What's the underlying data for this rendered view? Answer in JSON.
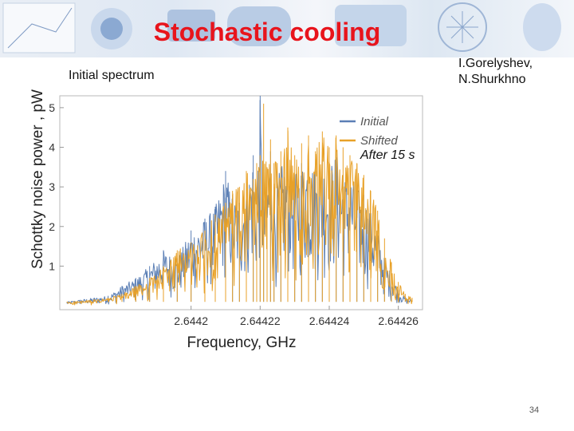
{
  "slide": {
    "title": "Stochastic cooling",
    "authors": [
      "I.Gorelyshev,",
      "N.Shurkhno"
    ],
    "subtitle": "Initial spectrum",
    "annotation": "After 15 s",
    "page_number": "34"
  },
  "colors": {
    "title": "#e8141c",
    "initial": "#5b7fb5",
    "shifted": "#e8a128"
  },
  "chart_data": {
    "type": "line",
    "title": "",
    "xlabel": "Frequency, GHz",
    "ylabel": "Schottky noise power , pW",
    "xlim": [
      2.644162,
      2.644267
    ],
    "ylim": [
      -0.1,
      5.3
    ],
    "xticks": [
      2.6442,
      2.64422,
      2.64424,
      2.64426
    ],
    "xtick_labels": [
      "2.6442",
      "2.64422",
      "2.64424",
      "2.64426"
    ],
    "yticks": [
      1,
      2,
      3,
      4,
      5
    ],
    "ytick_labels": [
      "1",
      "2",
      "3",
      "4",
      "5"
    ],
    "legend": {
      "position": "top-right"
    },
    "series": [
      {
        "name": "Initial",
        "color": "#5b7fb5",
        "x": [
          2.644164,
          2.644168,
          2.644172,
          2.644176,
          2.64418,
          2.644184,
          2.644188,
          2.644192,
          2.644196,
          2.6442,
          2.644204,
          2.644207,
          2.64421,
          2.644212,
          2.644214,
          2.644216,
          2.644218,
          2.644219,
          2.64422,
          2.644221,
          2.644222,
          2.644223,
          2.644224,
          2.644226,
          2.644228,
          2.64423,
          2.644232,
          2.644234,
          2.644236,
          2.644238,
          2.64424,
          2.644242,
          2.644244,
          2.644246,
          2.644248,
          2.64425,
          2.644252,
          2.644254,
          2.644256,
          2.644258,
          2.64426,
          2.644262,
          2.644264
        ],
        "values": [
          0.1,
          0.15,
          0.2,
          0.25,
          0.5,
          0.7,
          1.0,
          1.4,
          1.2,
          1.9,
          2.2,
          2.5,
          3.4,
          2.8,
          2.6,
          3.2,
          3.8,
          3.0,
          5.3,
          2.7,
          3.2,
          3.9,
          3.0,
          3.5,
          3.8,
          3.3,
          3.6,
          4.0,
          3.4,
          3.7,
          3.5,
          3.9,
          3.3,
          3.4,
          3.0,
          2.8,
          2.4,
          1.9,
          1.2,
          0.8,
          0.4,
          0.2,
          0.15
        ]
      },
      {
        "name": "Shifted",
        "color": "#e8a128",
        "x": [
          2.644164,
          2.644168,
          2.644172,
          2.644176,
          2.64418,
          2.644184,
          2.644188,
          2.644192,
          2.644196,
          2.6442,
          2.644204,
          2.644207,
          2.64421,
          2.644212,
          2.644214,
          2.644216,
          2.644218,
          2.644219,
          2.64422,
          2.644221,
          2.644222,
          2.644223,
          2.644224,
          2.644226,
          2.644228,
          2.64423,
          2.644232,
          2.644234,
          2.644236,
          2.644238,
          2.64424,
          2.644242,
          2.644244,
          2.644246,
          2.644248,
          2.64425,
          2.644252,
          2.644254,
          2.644256,
          2.644258,
          2.64426,
          2.644262,
          2.644264
        ],
        "values": [
          0.1,
          0.12,
          0.15,
          0.2,
          0.3,
          0.5,
          0.7,
          1.0,
          1.4,
          1.6,
          1.9,
          2.3,
          2.6,
          2.9,
          3.0,
          3.4,
          3.2,
          3.6,
          3.8,
          5.1,
          3.5,
          4.2,
          3.6,
          3.9,
          4.5,
          3.8,
          4.1,
          4.3,
          3.9,
          4.4,
          4.0,
          4.3,
          4.0,
          3.8,
          3.6,
          3.3,
          2.9,
          2.4,
          1.7,
          1.1,
          0.6,
          0.3,
          0.2
        ]
      }
    ]
  }
}
